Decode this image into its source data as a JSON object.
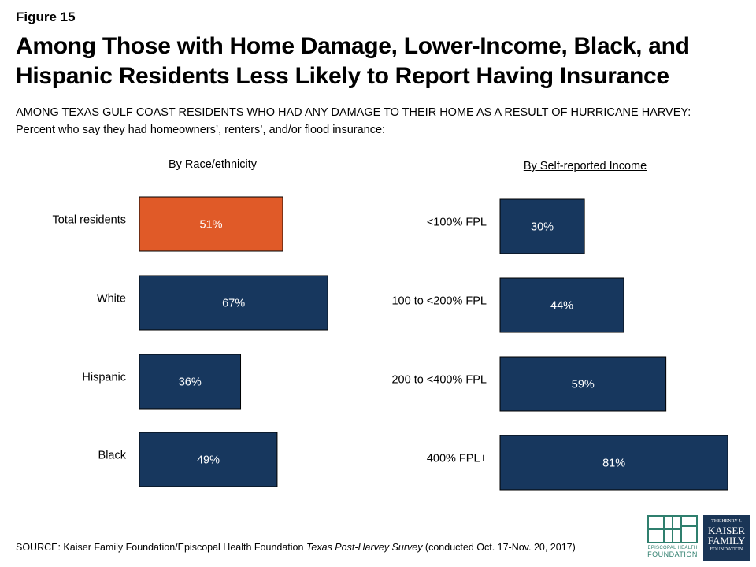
{
  "figure_label": "Figure 15",
  "title": {
    "line1": "Among Those with Home Damage, Lower-Income, Black, and",
    "line2": "Hispanic Residents Less Likely to Report Having Insurance"
  },
  "subtitle_caps": "AMONG TEXAS GULF COAST RESIDENTS WHO HAD ANY DAMAGE TO THEIR HOME AS A RESULT OF HURRICANE HARVEY:",
  "subtitle_desc": "Percent who say they had homeowners’, renters’, and/or flood insurance:",
  "colors": {
    "navy": "#17375e",
    "orange": "#e05a28",
    "bar_label": "#ffffff"
  },
  "chart_data": [
    {
      "type": "bar",
      "orientation": "horizontal",
      "title": "By Race/ethnicity",
      "categories": [
        "Total residents",
        "White",
        "Hispanic",
        "Black"
      ],
      "values": [
        51,
        67,
        36,
        49
      ],
      "value_labels": [
        "51%",
        "67%",
        "36%",
        "49%"
      ],
      "highlight": [
        "orange",
        "navy",
        "navy",
        "navy"
      ],
      "xlim": [
        0,
        100
      ]
    },
    {
      "type": "bar",
      "orientation": "horizontal",
      "title": "By Self-reported Income",
      "categories": [
        "<100% FPL",
        "100 to <200% FPL",
        "200 to <400% FPL",
        "400% FPL+"
      ],
      "values": [
        30,
        44,
        59,
        81
      ],
      "value_labels": [
        "30%",
        "44%",
        "59%",
        "81%"
      ],
      "highlight": [
        "navy",
        "navy",
        "navy",
        "navy"
      ],
      "xlim": [
        0,
        100
      ]
    }
  ],
  "source": {
    "prefix": "SOURCE: Kaiser Family Foundation/Episcopal Health Foundation ",
    "italic": "Texas Post-Harvey Survey",
    "suffix": " (conducted Oct. 17-Nov. 20, 2017)"
  },
  "logos": {
    "ehf": {
      "line1": "EPISCOPAL HEALTH",
      "line2": "FOUNDATION"
    },
    "kff": {
      "line1": "THE HENRY J.",
      "line2": "KAISER",
      "line3": "FAMILY",
      "line4": "FOUNDATION"
    }
  }
}
